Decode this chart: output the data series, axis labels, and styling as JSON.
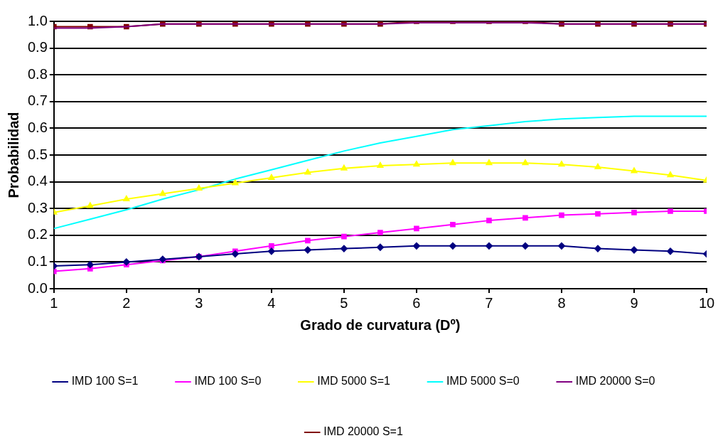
{
  "chart_data": {
    "type": "line",
    "xlabel": "Grado de curvatura (Dº)",
    "ylabel": "Probabilidad",
    "x": [
      1,
      1.5,
      2,
      2.5,
      3,
      3.5,
      4,
      4.5,
      5,
      5.5,
      6,
      6.5,
      7,
      7.5,
      8,
      8.5,
      9,
      9.5,
      10
    ],
    "series": [
      {
        "name": "IMD 100 S=1",
        "color": "#000080",
        "marker": "diamond",
        "values": [
          0.085,
          0.09,
          0.1,
          0.11,
          0.12,
          0.13,
          0.14,
          0.145,
          0.15,
          0.155,
          0.16,
          0.16,
          0.16,
          0.16,
          0.16,
          0.15,
          0.145,
          0.14,
          0.13
        ]
      },
      {
        "name": "IMD 100 S=0",
        "color": "#ff00ff",
        "marker": "square",
        "values": [
          0.065,
          0.075,
          0.09,
          0.105,
          0.12,
          0.14,
          0.16,
          0.18,
          0.195,
          0.21,
          0.225,
          0.24,
          0.255,
          0.265,
          0.275,
          0.28,
          0.285,
          0.29,
          0.29
        ]
      },
      {
        "name": "IMD 5000 S=1",
        "color": "#ffff00",
        "marker": "triangle",
        "values": [
          0.285,
          0.31,
          0.335,
          0.355,
          0.375,
          0.395,
          0.415,
          0.435,
          0.45,
          0.46,
          0.465,
          0.47,
          0.47,
          0.47,
          0.465,
          0.455,
          0.44,
          0.425,
          0.405
        ]
      },
      {
        "name": "IMD 5000 S=0",
        "color": "#00ffff",
        "marker": "none",
        "values": [
          0.225,
          0.26,
          0.295,
          0.335,
          0.37,
          0.41,
          0.445,
          0.48,
          0.515,
          0.545,
          0.57,
          0.595,
          0.61,
          0.625,
          0.635,
          0.64,
          0.645,
          0.645,
          0.645
        ]
      },
      {
        "name": "IMD 20000 S=0",
        "color": "#800080",
        "marker": "none",
        "values": [
          0.975,
          0.975,
          0.98,
          0.99,
          0.99,
          0.99,
          0.99,
          0.99,
          0.99,
          0.99,
          0.995,
          0.995,
          0.995,
          0.995,
          0.99,
          0.99,
          0.99,
          0.99,
          0.99
        ]
      },
      {
        "name": "IMD 20000 S=1",
        "color": "#800000",
        "marker": "square",
        "values": [
          0.98,
          0.98,
          0.98,
          0.99,
          0.99,
          0.99,
          0.99,
          0.99,
          0.99,
          0.99,
          1.0,
          1.0,
          1.0,
          1.0,
          0.99,
          0.99,
          0.99,
          0.99,
          0.99
        ]
      }
    ],
    "xlim": [
      1,
      10
    ],
    "xticks": [
      1,
      2,
      3,
      4,
      5,
      6,
      7,
      8,
      9,
      10
    ],
    "ylim": [
      0,
      1
    ],
    "yticks": [
      {
        "value": 0,
        "label": "0.0"
      },
      0.1,
      0.2,
      0.3,
      0.4,
      0.5,
      0.6,
      0.7,
      0.8,
      0.9,
      {
        "value": 1,
        "label": "1.0"
      }
    ],
    "grid": "y",
    "legend": "bottom",
    "line_style": "solid"
  }
}
